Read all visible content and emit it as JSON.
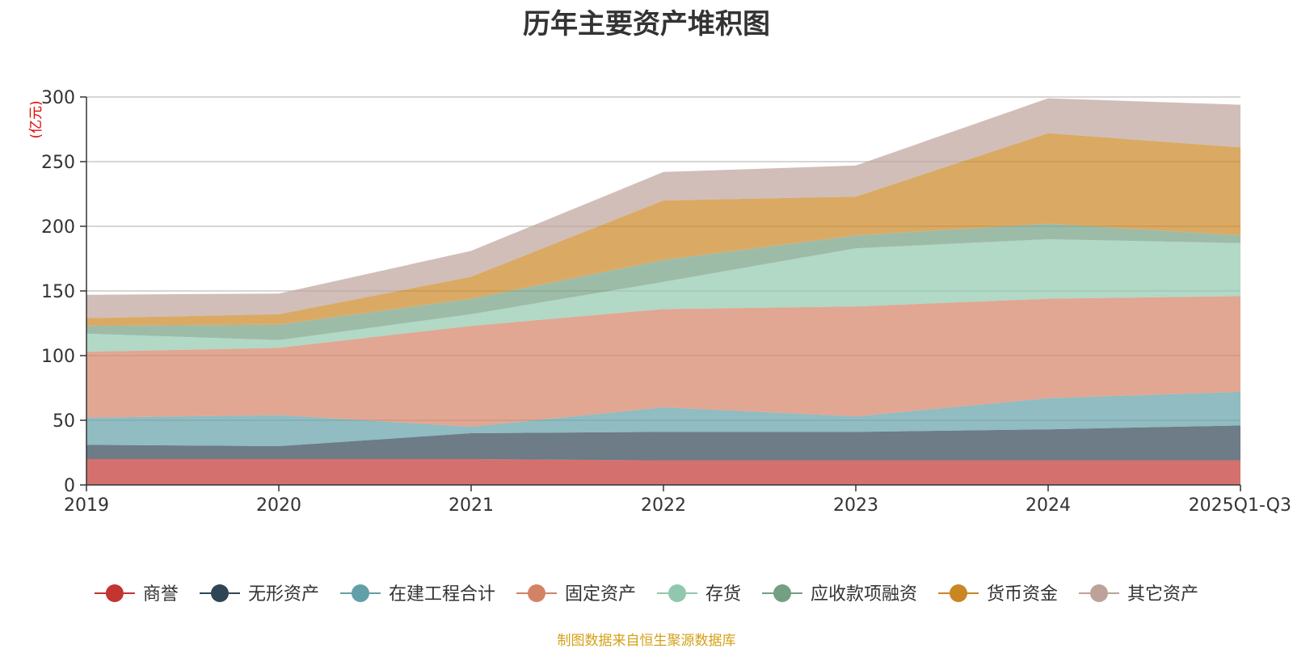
{
  "chart_data": {
    "type": "area",
    "stacked": true,
    "title": "历年主要资产堆积图",
    "ylabel": "(亿元)",
    "xlabel": "",
    "categories": [
      "2019",
      "2020",
      "2021",
      "2022",
      "2023",
      "2024",
      "2025Q1-Q3"
    ],
    "ylim": [
      0,
      300
    ],
    "yticks": [
      0,
      50,
      100,
      150,
      200,
      250,
      300
    ],
    "grid": true,
    "legend_position": "bottom",
    "series": [
      {
        "name": "商誉",
        "color": "#c23531",
        "values": [
          20,
          20,
          20,
          19,
          19,
          19,
          19
        ]
      },
      {
        "name": "无形资产",
        "color": "#2f4554",
        "values": [
          11,
          10,
          20,
          22,
          22,
          24,
          27
        ]
      },
      {
        "name": "在建工程合计",
        "color": "#61a0a8",
        "values": [
          21,
          24,
          5,
          19,
          12,
          24,
          26
        ]
      },
      {
        "name": "固定资产",
        "color": "#d48265",
        "values": [
          51,
          52,
          78,
          76,
          85,
          77,
          74
        ]
      },
      {
        "name": "存货",
        "color": "#91c7ae",
        "values": [
          14,
          6,
          9,
          21,
          45,
          46,
          41
        ]
      },
      {
        "name": "应收款项融资",
        "color": "#749f83",
        "values": [
          6,
          12,
          12,
          17,
          10,
          12,
          6
        ]
      },
      {
        "name": "货币资金",
        "color": "#ca8622",
        "values": [
          6,
          8,
          17,
          46,
          30,
          70,
          68
        ]
      },
      {
        "name": "其它资产",
        "color": "#bda29a",
        "values": [
          18,
          16,
          20,
          22,
          24,
          27,
          33
        ]
      }
    ]
  },
  "source": "制图数据来自恒生聚源数据库"
}
